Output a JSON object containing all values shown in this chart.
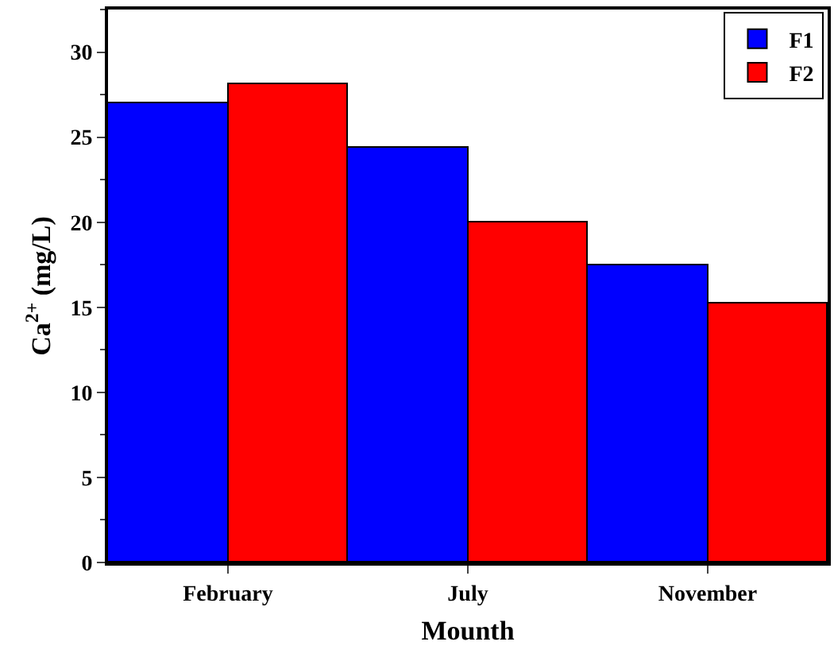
{
  "chart_data": {
    "type": "bar",
    "xlabel": "Mounth",
    "ylabel": "Ca$^{2+}$ (mg/L)",
    "categories": [
      "February",
      "July",
      "November"
    ],
    "series": [
      {
        "name": "F1",
        "color": "#0000ff",
        "values": [
          27.0,
          24.4,
          17.5
        ]
      },
      {
        "name": "F2",
        "color": "#ff0000",
        "values": [
          28.1,
          20.0,
          15.2
        ]
      }
    ],
    "ylim": [
      0,
      32.5
    ],
    "yticks": [
      0,
      5,
      10,
      15,
      20,
      25,
      30
    ],
    "grid": false,
    "legend": "top right"
  }
}
